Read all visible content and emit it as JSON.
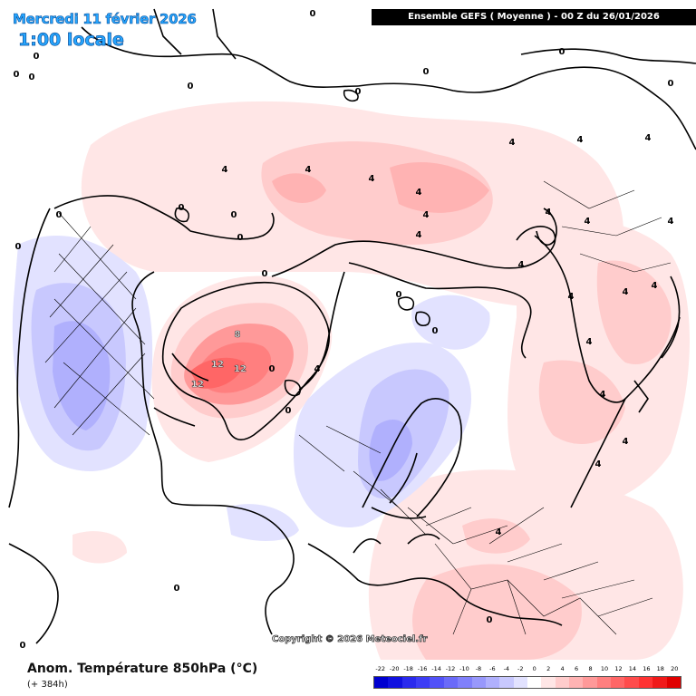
{
  "header": {
    "date": "Mercredi 11 février 2026",
    "time": "1:00 locale",
    "run": "Ensemble GEFS  ( Moyenne )  -  00 Z du 26/01/2026"
  },
  "footer": {
    "title": "Anom. Température 850hPa (°C)",
    "subtitle": "(+ 384h)",
    "copyright": "Copyright © 2026 Meteociel.fr"
  },
  "legend": {
    "labels": [
      "-22",
      "-20",
      "-18",
      "-16",
      "-14",
      "-12",
      "-10",
      "-8",
      "-6",
      "-4",
      "-2",
      "0",
      "2",
      "4",
      "6",
      "8",
      "10",
      "12",
      "14",
      "16",
      "18",
      "20"
    ],
    "colors": [
      "#0000d0",
      "#1111e0",
      "#2a2aee",
      "#3d3df5",
      "#5252f8",
      "#6a6af9",
      "#8080fb",
      "#9898fc",
      "#b0b0fd",
      "#c8c8fe",
      "#e2e2ff",
      "#ffffff",
      "#ffe6e6",
      "#ffcccc",
      "#ffb3b3",
      "#ff9999",
      "#ff7f7f",
      "#ff6666",
      "#ff4c4c",
      "#ff3333",
      "#f01a1a",
      "#e00000"
    ]
  },
  "map": {
    "anomaly_labels": [
      {
        "t": "0"
      },
      {
        "t": "0"
      },
      {
        "t": "0"
      },
      {
        "t": "0"
      },
      {
        "t": "0"
      },
      {
        "t": "0"
      },
      {
        "t": "0"
      },
      {
        "t": "0"
      },
      {
        "t": "0"
      },
      {
        "t": "0"
      },
      {
        "t": "0"
      },
      {
        "t": "0"
      },
      {
        "t": "0"
      },
      {
        "t": "0"
      },
      {
        "t": "0"
      },
      {
        "t": "0"
      },
      {
        "t": "0"
      },
      {
        "t": "0"
      },
      {
        "t": "0"
      },
      {
        "t": "0"
      },
      {
        "t": "4"
      },
      {
        "t": "4"
      },
      {
        "t": "4"
      },
      {
        "t": "4"
      },
      {
        "t": "4"
      },
      {
        "t": "4"
      },
      {
        "t": "4"
      },
      {
        "t": "4"
      },
      {
        "t": "4"
      },
      {
        "t": "4"
      },
      {
        "t": "4"
      },
      {
        "t": "4"
      },
      {
        "t": "4"
      },
      {
        "t": "4"
      },
      {
        "t": "4"
      },
      {
        "t": "4"
      },
      {
        "t": "4"
      },
      {
        "t": "4"
      },
      {
        "t": "4"
      },
      {
        "t": "4"
      },
      {
        "t": "8"
      },
      {
        "t": "12"
      },
      {
        "t": "12"
      },
      {
        "t": "12"
      },
      {
        "t": "0"
      },
      {
        "t": "0"
      },
      {
        "t": "4"
      },
      {
        "t": "4"
      }
    ]
  }
}
